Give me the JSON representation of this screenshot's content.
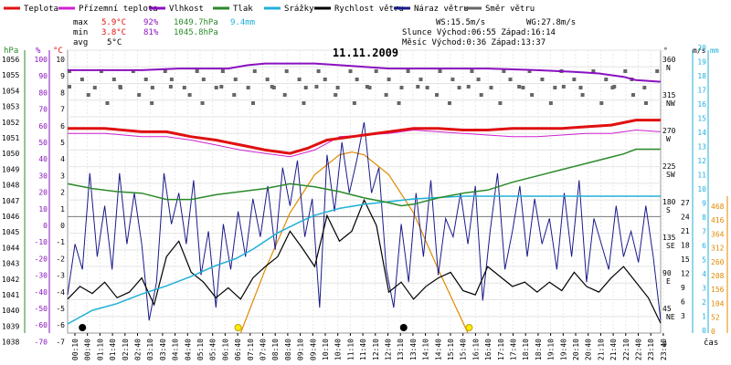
{
  "chart_data": {
    "type": "line",
    "title": "11.11.2009",
    "legend": [
      {
        "key": "temp",
        "name": "Teplota",
        "color": "#e01010"
      },
      {
        "key": "feels",
        "name": "Přízemní teplota",
        "color": "#d020d0"
      },
      {
        "key": "hum",
        "name": "Vlhkost",
        "color": "#8a10c0"
      },
      {
        "key": "press",
        "name": "Tlak",
        "color": "#2a8a2a"
      },
      {
        "key": "rain",
        "name": "Srážky",
        "color": "#20b0d8"
      },
      {
        "key": "wind",
        "name": "Rychlost větru",
        "color": "#000000"
      },
      {
        "key": "gust",
        "name": "Náraz větru",
        "color": "#1a1a8a"
      },
      {
        "key": "dir",
        "name": "Směr větru",
        "color": "#666666"
      }
    ],
    "stats": {
      "max_label": "max",
      "max_temp": "5.9°C",
      "max_hum": "92%",
      "max_press": "1049.7hPa",
      "max_rain": "9.4mm",
      "min_label": "min",
      "min_temp": "3.8°C",
      "min_hum": "81%",
      "min_press": "1045.8hPa",
      "avg_label": "avg",
      "avg_temp": "5°C",
      "ws": "WS:15.5m/s",
      "wg": "WG:27.8m/s",
      "sun": "Slunce Východ:06:55  Západ:16:14",
      "moon": "Měsíc  Východ:0:36   Západ:13:37"
    },
    "axes": {
      "hpa_unit": "hPa",
      "pct_unit": "%",
      "c_unit": "°C",
      "deg_unit": "°",
      "ms_unit": "m/s",
      "mm_unit": "mm",
      "hpa_ticks": [
        "1056",
        "1055",
        "1054",
        "1053",
        "1052",
        "1051",
        "1050",
        "1049",
        "1048",
        "1047",
        "1046",
        "1045",
        "1044",
        "1043",
        "1042",
        "1041",
        "1040",
        "1039",
        "1038"
      ],
      "pct_ticks": [
        "100",
        "90",
        "80",
        "70",
        "60",
        "50",
        "40",
        "30",
        "20",
        "10",
        "0",
        "-10",
        "-20",
        "-30",
        "-40",
        "-50",
        "-60",
        "-70"
      ],
      "c_ticks": [
        "10",
        "9",
        "8",
        "7",
        "6",
        "5",
        "4",
        "3",
        "2",
        "1",
        "0",
        "-1",
        "-2",
        "-3",
        "-4",
        "-5",
        "-6",
        "-7"
      ],
      "deg_ticks": [
        "360",
        "315",
        "270",
        "225",
        "180",
        "135",
        "90",
        "45",
        "0"
      ],
      "dir_names": [
        "N",
        "NW",
        "W",
        "SW",
        "S",
        "SE",
        "E",
        "NE"
      ],
      "ms_ticks": [
        "20",
        "19",
        "18",
        "17",
        "16",
        "15",
        "14",
        "13",
        "12",
        "11",
        "10",
        "9",
        "8",
        "7",
        "6",
        "5",
        "4",
        "3",
        "2",
        "1",
        "0"
      ],
      "ms2_ticks": [
        "27",
        "24",
        "21",
        "18",
        "15",
        "12",
        "9",
        "6",
        "3"
      ],
      "mm_ticks": [
        "468",
        "416",
        "364",
        "312",
        "260",
        "208",
        "156",
        "104",
        "52",
        "0"
      ],
      "x_ticks": [
        "00:10",
        "00:40",
        "01:10",
        "01:40",
        "02:10",
        "02:40",
        "03:10",
        "03:40",
        "04:10",
        "04:40",
        "05:10",
        "05:40",
        "06:10",
        "06:40",
        "07:10",
        "07:40",
        "08:10",
        "08:40",
        "09:10",
        "09:40",
        "10:10",
        "10:40",
        "11:10",
        "11:40",
        "12:10",
        "12:40",
        "13:10",
        "13:40",
        "14:10",
        "14:40",
        "15:10",
        "15:40",
        "16:10",
        "16:40",
        "17:10",
        "17:40",
        "18:10",
        "18:40",
        "19:10",
        "19:40",
        "20:10",
        "20:40",
        "21:10",
        "21:40",
        "22:10",
        "22:40",
        "23:10",
        "23:40"
      ],
      "time_label": "čas"
    },
    "x_range": [
      0,
      24
    ],
    "series": {
      "temp": [
        [
          0,
          5.3
        ],
        [
          1.5,
          5.3
        ],
        [
          3,
          5.1
        ],
        [
          4,
          5.1
        ],
        [
          5,
          4.8
        ],
        [
          6,
          4.6
        ],
        [
          7,
          4.3
        ],
        [
          8,
          4.0
        ],
        [
          9,
          3.8
        ],
        [
          9.7,
          4.1
        ],
        [
          10.5,
          4.6
        ],
        [
          11.5,
          4.8
        ],
        [
          12,
          4.9
        ],
        [
          13,
          5.1
        ],
        [
          14,
          5.3
        ],
        [
          15,
          5.3
        ],
        [
          16,
          5.2
        ],
        [
          17,
          5.2
        ],
        [
          18,
          5.3
        ],
        [
          19,
          5.3
        ],
        [
          20,
          5.3
        ],
        [
          21,
          5.4
        ],
        [
          22,
          5.5
        ],
        [
          23,
          5.8
        ],
        [
          24,
          5.8
        ]
      ],
      "feels": [
        [
          0,
          5.0
        ],
        [
          1.5,
          5.0
        ],
        [
          3,
          4.8
        ],
        [
          4,
          4.8
        ],
        [
          5,
          4.6
        ],
        [
          6,
          4.3
        ],
        [
          7,
          4.0
        ],
        [
          8,
          3.8
        ],
        [
          9,
          3.6
        ],
        [
          10,
          4.0
        ],
        [
          11,
          4.8
        ],
        [
          12,
          4.9
        ],
        [
          13,
          5.0
        ],
        [
          14,
          5.2
        ],
        [
          15,
          5.1
        ],
        [
          16,
          5.0
        ],
        [
          17,
          4.9
        ],
        [
          18,
          4.8
        ],
        [
          19,
          4.8
        ],
        [
          20,
          4.9
        ],
        [
          21,
          5.0
        ],
        [
          22,
          5.0
        ],
        [
          23,
          5.2
        ],
        [
          24,
          5.1
        ]
      ],
      "hum": [
        [
          0,
          88
        ],
        [
          3,
          88
        ],
        [
          4.5,
          89
        ],
        [
          6.5,
          89
        ],
        [
          7.3,
          91
        ],
        [
          8,
          92
        ],
        [
          9,
          92
        ],
        [
          10,
          92
        ],
        [
          11,
          91
        ],
        [
          12,
          90
        ],
        [
          13,
          89
        ],
        [
          14,
          89
        ],
        [
          16,
          89
        ],
        [
          17,
          89
        ],
        [
          19,
          88
        ],
        [
          20.5,
          87
        ],
        [
          21.5,
          86
        ],
        [
          22.5,
          84
        ],
        [
          23,
          82
        ],
        [
          24,
          81
        ]
      ],
      "press": [
        [
          0,
          1047.5
        ],
        [
          1,
          1047.2
        ],
        [
          2,
          1047.0
        ],
        [
          3,
          1046.9
        ],
        [
          4,
          1046.5
        ],
        [
          5,
          1046.5
        ],
        [
          6,
          1046.8
        ],
        [
          7,
          1047.0
        ],
        [
          8,
          1047.2
        ],
        [
          9,
          1047.5
        ],
        [
          10,
          1047.3
        ],
        [
          11,
          1047.0
        ],
        [
          12,
          1046.6
        ],
        [
          13,
          1046.3
        ],
        [
          13.5,
          1046.1
        ],
        [
          14,
          1046.2
        ],
        [
          15,
          1046.6
        ],
        [
          16,
          1046.9
        ],
        [
          17,
          1047.1
        ],
        [
          18,
          1047.6
        ],
        [
          19,
          1048.0
        ],
        [
          20,
          1048.4
        ],
        [
          21,
          1048.8
        ],
        [
          22,
          1049.2
        ],
        [
          22.5,
          1049.4
        ],
        [
          23,
          1049.7
        ],
        [
          24,
          1049.7
        ]
      ],
      "rain": [
        [
          0,
          0
        ],
        [
          1,
          1
        ],
        [
          2,
          1.5
        ],
        [
          3,
          2.2
        ],
        [
          4,
          2.8
        ],
        [
          5,
          3.5
        ],
        [
          6,
          4.3
        ],
        [
          6.8,
          4.8
        ],
        [
          7.5,
          5.5
        ],
        [
          8.5,
          6.7
        ],
        [
          9.5,
          7.6
        ],
        [
          10,
          8.0
        ],
        [
          11,
          8.5
        ],
        [
          12,
          8.8
        ],
        [
          13,
          9.0
        ],
        [
          14,
          9.2
        ],
        [
          15,
          9.3
        ],
        [
          16,
          9.4
        ],
        [
          24,
          9.4
        ]
      ],
      "sun_alt": [
        [
          7,
          0
        ],
        [
          8,
          4.5
        ],
        [
          9,
          8.5
        ],
        [
          10,
          11.2
        ],
        [
          11,
          12.6
        ],
        [
          11.5,
          12.8
        ],
        [
          12,
          12.6
        ],
        [
          13,
          11.2
        ],
        [
          14,
          8.5
        ],
        [
          15,
          4.5
        ],
        [
          16.2,
          0
        ]
      ],
      "wind": [
        [
          0,
          2.4
        ],
        [
          0.5,
          3.3
        ],
        [
          1,
          2.8
        ],
        [
          1.5,
          3.6
        ],
        [
          2,
          2.5
        ],
        [
          2.5,
          2.9
        ],
        [
          3,
          3.9
        ],
        [
          3.5,
          2.0
        ],
        [
          4,
          5.4
        ],
        [
          4.5,
          6.5
        ],
        [
          5,
          4.3
        ],
        [
          5.5,
          3.6
        ],
        [
          6,
          2.5
        ],
        [
          6.5,
          3.2
        ],
        [
          7,
          2.4
        ],
        [
          7.5,
          3.9
        ],
        [
          8,
          4.7
        ],
        [
          8.5,
          5.4
        ],
        [
          9,
          7.2
        ],
        [
          9.5,
          6.0
        ],
        [
          10,
          4.7
        ],
        [
          10.5,
          8.3
        ],
        [
          11,
          6.5
        ],
        [
          11.5,
          7.2
        ],
        [
          12,
          9.4
        ],
        [
          12.5,
          7.6
        ],
        [
          13,
          2.9
        ],
        [
          13.5,
          3.6
        ],
        [
          14,
          2.4
        ],
        [
          14.5,
          3.3
        ],
        [
          15,
          3.9
        ],
        [
          15.5,
          4.3
        ],
        [
          16,
          3.0
        ],
        [
          16.5,
          2.7
        ],
        [
          17,
          4.7
        ],
        [
          17.5,
          4.0
        ],
        [
          18,
          3.3
        ],
        [
          18.5,
          3.6
        ],
        [
          19,
          2.9
        ],
        [
          19.5,
          3.6
        ],
        [
          20,
          3.0
        ],
        [
          20.5,
          4.3
        ],
        [
          21,
          3.3
        ],
        [
          21.5,
          2.9
        ],
        [
          22,
          3.9
        ],
        [
          22.5,
          4.7
        ],
        [
          23,
          3.6
        ],
        [
          23.5,
          2.5
        ],
        [
          24,
          0.7
        ]
      ],
      "gust": [
        [
          0,
          2.7
        ],
        [
          0.3,
          6.3
        ],
        [
          0.6,
          4.5
        ],
        [
          0.9,
          11.3
        ],
        [
          1.2,
          5.4
        ],
        [
          1.5,
          9.0
        ],
        [
          1.8,
          4.5
        ],
        [
          2.1,
          11.3
        ],
        [
          2.4,
          6.3
        ],
        [
          2.7,
          9.9
        ],
        [
          3.0,
          6.3
        ],
        [
          3.3,
          0.9
        ],
        [
          3.6,
          3.6
        ],
        [
          3.9,
          11.3
        ],
        [
          4.2,
          7.7
        ],
        [
          4.5,
          9.9
        ],
        [
          4.8,
          6.3
        ],
        [
          5.1,
          10.8
        ],
        [
          5.4,
          4.1
        ],
        [
          5.7,
          7.2
        ],
        [
          6.0,
          1.8
        ],
        [
          6.3,
          7.7
        ],
        [
          6.6,
          4.5
        ],
        [
          6.9,
          8.6
        ],
        [
          7.2,
          5.4
        ],
        [
          7.5,
          9.5
        ],
        [
          7.8,
          6.8
        ],
        [
          8.1,
          10.4
        ],
        [
          8.4,
          5.9
        ],
        [
          8.7,
          11.7
        ],
        [
          9.0,
          9.0
        ],
        [
          9.3,
          12.2
        ],
        [
          9.6,
          6.8
        ],
        [
          9.9,
          9.5
        ],
        [
          10.2,
          1.8
        ],
        [
          10.5,
          12.6
        ],
        [
          10.8,
          8.6
        ],
        [
          11.1,
          13.5
        ],
        [
          11.4,
          9.9
        ],
        [
          11.7,
          12.2
        ],
        [
          12.0,
          14.9
        ],
        [
          12.3,
          9.9
        ],
        [
          12.6,
          11.7
        ],
        [
          12.9,
          4.5
        ],
        [
          13.2,
          1.8
        ],
        [
          13.5,
          7.7
        ],
        [
          13.8,
          3.6
        ],
        [
          14.1,
          9.9
        ],
        [
          14.4,
          5.4
        ],
        [
          14.7,
          10.8
        ],
        [
          15.0,
          4.1
        ],
        [
          15.3,
          8.1
        ],
        [
          15.6,
          6.8
        ],
        [
          15.9,
          9.9
        ],
        [
          16.2,
          6.3
        ],
        [
          16.5,
          10.4
        ],
        [
          16.8,
          2.3
        ],
        [
          17.1,
          7.2
        ],
        [
          17.4,
          11.3
        ],
        [
          17.7,
          4.5
        ],
        [
          18.0,
          7.2
        ],
        [
          18.3,
          10.4
        ],
        [
          18.6,
          5.4
        ],
        [
          18.9,
          9.5
        ],
        [
          19.2,
          6.3
        ],
        [
          19.5,
          8.1
        ],
        [
          19.8,
          4.5
        ],
        [
          20.1,
          9.9
        ],
        [
          20.4,
          5.4
        ],
        [
          20.7,
          10.8
        ],
        [
          21.0,
          3.6
        ],
        [
          21.3,
          8.1
        ],
        [
          21.6,
          6.3
        ],
        [
          21.9,
          4.5
        ],
        [
          22.2,
          9.0
        ],
        [
          22.5,
          5.4
        ],
        [
          22.8,
          7.2
        ],
        [
          23.1,
          5.0
        ],
        [
          23.4,
          9.0
        ],
        [
          23.7,
          5.4
        ],
        [
          24.0,
          0.9
        ]
      ],
      "dir_rows": [
        315,
        270
      ],
      "dir_row_counts": [
        58,
        36
      ]
    },
    "markers": [
      {
        "type": "moonrise",
        "t": 0.6
      },
      {
        "type": "sunrise",
        "t": 6.9
      },
      {
        "type": "moonset",
        "t": 13.6
      },
      {
        "type": "sunset",
        "t": 16.25
      }
    ]
  }
}
